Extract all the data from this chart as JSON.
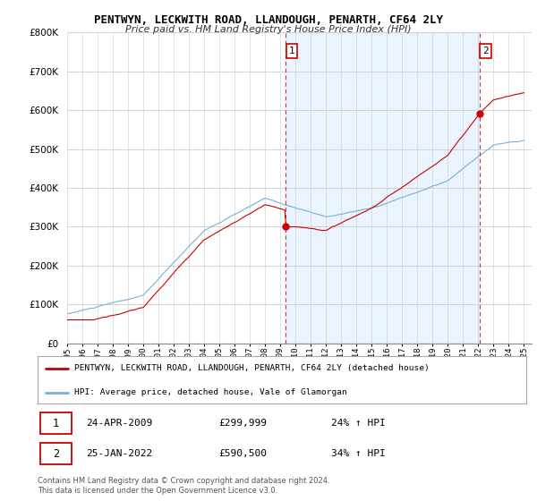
{
  "title": "PENTWYN, LECKWITH ROAD, LLANDOUGH, PENARTH, CF64 2LY",
  "subtitle": "Price paid vs. HM Land Registry's House Price Index (HPI)",
  "legend_line1": "PENTWYN, LECKWITH ROAD, LLANDOUGH, PENARTH, CF64 2LY (detached house)",
  "legend_line2": "HPI: Average price, detached house, Vale of Glamorgan",
  "sale1_label": "1",
  "sale1_date": "24-APR-2009",
  "sale1_price": "£299,999",
  "sale1_hpi": "24% ↑ HPI",
  "sale2_label": "2",
  "sale2_date": "25-JAN-2022",
  "sale2_price": "£590,500",
  "sale2_hpi": "34% ↑ HPI",
  "footnote": "Contains HM Land Registry data © Crown copyright and database right 2024.\nThis data is licensed under the Open Government Licence v3.0.",
  "red_color": "#cc0000",
  "blue_color": "#7bafd4",
  "shade_color": "#ddeeff",
  "background_color": "#ffffff",
  "grid_color": "#cccccc",
  "ylim": [
    0,
    800000
  ],
  "yticks": [
    0,
    100000,
    200000,
    300000,
    400000,
    500000,
    600000,
    700000,
    800000
  ],
  "x_start_year": 1995,
  "x_end_year": 2025
}
